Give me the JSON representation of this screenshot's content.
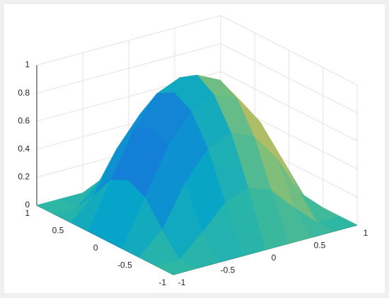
{
  "chart_data": {
    "type": "surface",
    "x": [
      -1,
      -0.75,
      -0.5,
      -0.25,
      0,
      0.25,
      0.5,
      0.75,
      1
    ],
    "y": [
      -1,
      -0.75,
      -0.5,
      -0.25,
      0,
      0.25,
      0.5,
      0.75,
      1
    ],
    "z": [
      [
        0,
        0,
        0,
        0,
        0,
        0,
        0,
        0,
        0
      ],
      [
        0,
        0,
        0.15,
        0.32,
        0.38,
        0.32,
        0.15,
        0,
        0
      ],
      [
        0,
        0.15,
        0.44,
        0.64,
        0.71,
        0.64,
        0.44,
        0.15,
        0
      ],
      [
        0,
        0.32,
        0.64,
        0.85,
        0.92,
        0.85,
        0.64,
        0.32,
        0
      ],
      [
        0,
        0.38,
        0.71,
        0.92,
        1,
        0.92,
        0.71,
        0.38,
        0
      ],
      [
        0,
        0.32,
        0.64,
        0.85,
        0.92,
        0.85,
        0.64,
        0.32,
        0
      ],
      [
        0,
        0.15,
        0.44,
        0.64,
        0.71,
        0.64,
        0.44,
        0.15,
        0
      ],
      [
        0,
        0,
        0.15,
        0.32,
        0.38,
        0.32,
        0.15,
        0,
        0
      ],
      [
        0,
        0,
        0,
        0,
        0,
        0,
        0,
        0,
        0
      ]
    ],
    "xlim": [
      -1,
      1
    ],
    "ylim": [
      -1,
      1
    ],
    "zlim": [
      0,
      1
    ],
    "xticks": [
      -1,
      -0.5,
      0,
      0.5,
      1
    ],
    "yticks": [
      -1,
      -0.5,
      0,
      0.5,
      1
    ],
    "zticks": [
      0,
      0.2,
      0.4,
      0.6,
      0.8,
      1
    ],
    "grid": true
  }
}
